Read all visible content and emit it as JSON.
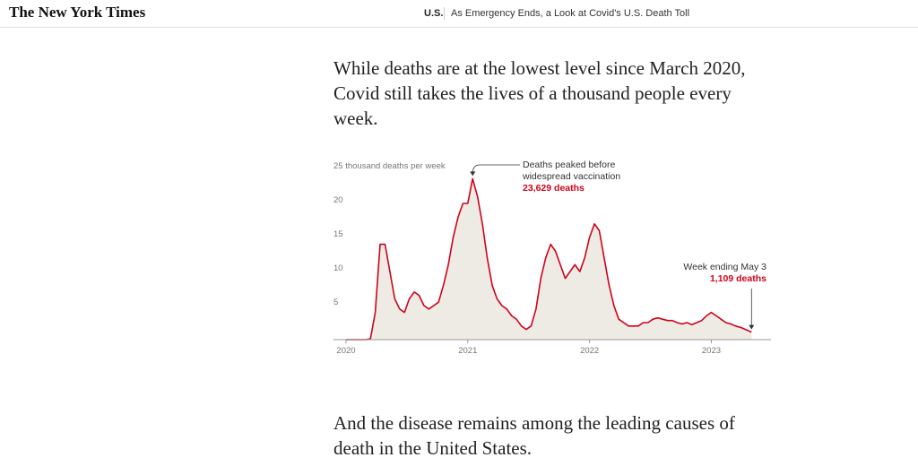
{
  "header": {
    "logo": "The New York Times",
    "section": "U.S.",
    "headline": "As Emergency Ends, a Look at Covid's U.S. Death Toll"
  },
  "paragraphs": [
    "While deaths are at the lowest level since March 2020, Covid still takes the lives of a thousand people every week.",
    "And the disease remains among the leading causes of death in the United States."
  ],
  "chart_data": {
    "type": "line",
    "series": [
      {
        "color": "#d0021b",
        "fill": "#eeebe4",
        "x": [
          2020.0,
          2020.04,
          2020.08,
          2020.12,
          2020.16,
          2020.2,
          2020.24,
          2020.28,
          2020.32,
          2020.36,
          2020.4,
          2020.44,
          2020.48,
          2020.52,
          2020.56,
          2020.6,
          2020.64,
          2020.68,
          2020.72,
          2020.76,
          2020.8,
          2020.84,
          2020.88,
          2020.92,
          2020.96,
          2021.0,
          2021.04,
          2021.08,
          2021.12,
          2021.16,
          2021.2,
          2021.24,
          2021.28,
          2021.32,
          2021.36,
          2021.4,
          2021.44,
          2021.48,
          2021.52,
          2021.56,
          2021.6,
          2021.64,
          2021.68,
          2021.72,
          2021.76,
          2021.8,
          2021.84,
          2021.88,
          2021.92,
          2021.96,
          2022.0,
          2022.04,
          2022.08,
          2022.12,
          2022.16,
          2022.2,
          2022.24,
          2022.28,
          2022.32,
          2022.36,
          2022.4,
          2022.44,
          2022.48,
          2022.52,
          2022.56,
          2022.6,
          2022.64,
          2022.68,
          2022.72,
          2022.76,
          2022.8,
          2022.84,
          2022.88,
          2022.92,
          2022.96,
          2023.0,
          2023.04,
          2023.08,
          2023.12,
          2023.16,
          2023.2,
          2023.24,
          2023.28,
          2023.33
        ],
        "values": [
          0,
          0,
          0,
          0,
          0,
          0.1,
          4,
          14,
          14,
          10,
          6,
          4.5,
          4,
          6,
          7,
          6.5,
          5,
          4.5,
          5,
          5.5,
          8,
          11,
          15,
          18,
          20,
          20,
          23.629,
          21,
          17,
          12,
          8,
          6,
          5,
          4.5,
          3.5,
          3,
          2,
          1.5,
          2,
          4.5,
          9,
          12,
          14,
          13,
          11,
          9,
          10,
          11,
          10,
          12,
          15,
          17,
          16,
          12,
          8,
          5,
          3,
          2.5,
          2,
          2,
          2,
          2.5,
          2.5,
          3,
          3.2,
          3,
          2.8,
          2.8,
          2.5,
          2.3,
          2.5,
          2.2,
          2.5,
          2.8,
          3.5,
          4,
          3.5,
          3,
          2.5,
          2.3,
          2,
          1.8,
          1.5,
          1.109
        ]
      }
    ],
    "ylim": [
      0,
      25
    ],
    "yticks": [
      5,
      10,
      15,
      20,
      {
        "value": 25,
        "label": "25 thousand deaths per week"
      }
    ],
    "xlim": [
      2020,
      2023.49
    ],
    "xticks": [
      2020,
      2021,
      2022,
      2023
    ],
    "grid": false,
    "annotations": [
      {
        "text": "Deaths peaked before widespread vaccination",
        "value": 23.629,
        "value_label": "23,629 deaths",
        "color": "#d0021b"
      },
      {
        "text": "Week ending May 3",
        "value": 1.109,
        "value_label": "1,109 deaths",
        "color": "#d0021b"
      }
    ]
  }
}
